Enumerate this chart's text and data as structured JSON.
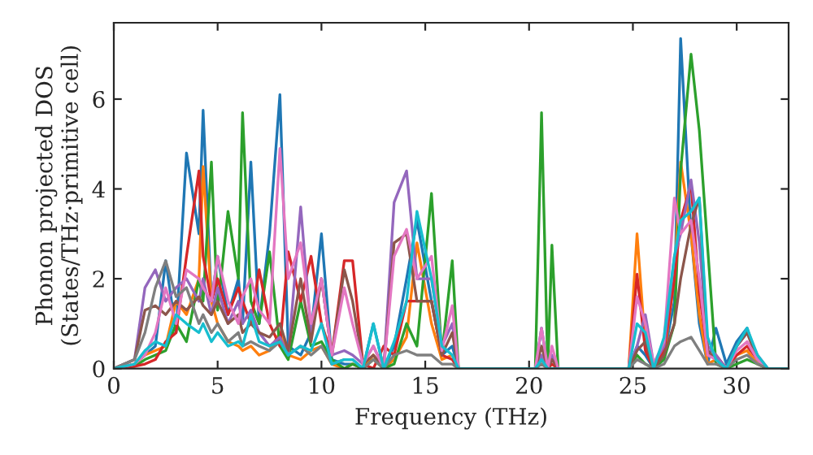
{
  "chart_data": {
    "type": "line",
    "xlabel": "Frequency (THz)",
    "ylabel": "Phonon projected DOS\n(States/THz·primitive cell)",
    "x": [
      0,
      1,
      1.5,
      2,
      2.5,
      3,
      3.5,
      4.1,
      4.3,
      4.7,
      5,
      5.5,
      6,
      6.2,
      6.6,
      7,
      7.5,
      8,
      8.4,
      9,
      9.5,
      10,
      10.5,
      11.1,
      11.5,
      12,
      12.5,
      13,
      13.5,
      14.1,
      14.6,
      15.3,
      15.8,
      16.3,
      16.6,
      20.3,
      20.6,
      20.9,
      21.1,
      21.4,
      24.8,
      25.2,
      25.6,
      26,
      26.5,
      27,
      27.3,
      27.8,
      28.2,
      28.6,
      29,
      29.5,
      30,
      30.5,
      31,
      31.5,
      32.5
    ],
    "series": [
      {
        "color": "#1f77b4",
        "values": [
          0,
          0.1,
          0.3,
          0.5,
          2.4,
          0.8,
          4.8,
          3,
          5.75,
          1.5,
          2.5,
          1.2,
          2,
          1,
          4.6,
          1,
          3,
          6.1,
          0.5,
          0.3,
          0.8,
          3,
          0.2,
          0.1,
          0.1,
          0,
          1,
          0,
          0.5,
          2,
          3.3,
          1.5,
          0.3,
          0.5,
          0,
          0,
          0.9,
          0,
          0,
          0,
          0,
          0.5,
          0.3,
          0,
          0.3,
          1.5,
          7.35,
          3,
          1,
          0.1,
          0.9,
          0.1,
          0.6,
          0.9,
          0.2,
          0,
          0
        ]
      },
      {
        "color": "#ff7f0e",
        "values": [
          0,
          0.1,
          0.3,
          0.4,
          0.5,
          1.5,
          1.2,
          2,
          4.5,
          1.5,
          1,
          0.6,
          0.5,
          0.4,
          0.5,
          0.3,
          0.4,
          0.8,
          0.3,
          0.2,
          0.4,
          0.5,
          0.1,
          0,
          0.1,
          0,
          0.3,
          0,
          0.2,
          0.7,
          2.8,
          1,
          0.2,
          0.3,
          0,
          0,
          0.2,
          0,
          0,
          0,
          0,
          3.0,
          0.5,
          0,
          0.3,
          2,
          4.6,
          3,
          1.2,
          0.1,
          0.2,
          0,
          0.3,
          0.4,
          0.1,
          0,
          0
        ]
      },
      {
        "color": "#2ca02c",
        "values": [
          0,
          0.05,
          0.2,
          0.3,
          0.4,
          1,
          0.6,
          2,
          1.5,
          4.6,
          1.3,
          3.5,
          2,
          5.7,
          1.5,
          1,
          2.6,
          0.5,
          0.2,
          1.5,
          0.5,
          0.6,
          0.2,
          0,
          0.1,
          0,
          0.2,
          0,
          0.1,
          1,
          0.5,
          3.9,
          0.3,
          2.4,
          0,
          0,
          5.7,
          0,
          2.75,
          0,
          0,
          0.3,
          0.1,
          0,
          0.2,
          1,
          4.4,
          7.0,
          5.3,
          2.7,
          0.1,
          0,
          0.1,
          0.2,
          0.1,
          0,
          0
        ]
      },
      {
        "color": "#d62728",
        "values": [
          0,
          0.05,
          0.1,
          0.2,
          0.6,
          0.8,
          2.5,
          4.4,
          2.5,
          1.5,
          2,
          1.2,
          1.8,
          1.5,
          1,
          2.2,
          1,
          0.5,
          2.6,
          1.5,
          2.5,
          1,
          0.3,
          2.4,
          2.4,
          0.1,
          0,
          0.5,
          0.3,
          1.5,
          1.5,
          1.5,
          0.3,
          0.2,
          0,
          0,
          0.2,
          0,
          0.1,
          0,
          0,
          2.1,
          0.4,
          0,
          0.4,
          2,
          3.3,
          4.1,
          1.7,
          0.3,
          0.3,
          0,
          0.3,
          0.5,
          0.2,
          0,
          0
        ]
      },
      {
        "color": "#9467bd",
        "values": [
          0,
          0.2,
          1.8,
          2.2,
          1.5,
          1.8,
          2,
          1.5,
          2,
          1.2,
          1.8,
          1,
          1.5,
          1,
          1.3,
          0.8,
          0.5,
          0.7,
          0.3,
          3.6,
          0.8,
          2,
          0.3,
          0.4,
          0.3,
          0.1,
          0.5,
          0,
          3.7,
          4.4,
          2,
          2,
          0.5,
          1,
          0,
          0,
          0.3,
          0,
          0.3,
          0,
          0,
          0.5,
          1.2,
          0.1,
          0.5,
          2.5,
          3,
          4.2,
          2.8,
          0.5,
          0.3,
          0,
          0.5,
          0.8,
          0.3,
          0,
          0
        ]
      },
      {
        "color": "#8c564b",
        "values": [
          0,
          0.2,
          1.3,
          1.4,
          1.2,
          1.5,
          1.3,
          1.6,
          1.4,
          1.2,
          1.5,
          1,
          1.2,
          0.8,
          1,
          0.8,
          0.7,
          1,
          0.4,
          2,
          0.6,
          2,
          0.3,
          2.2,
          1.5,
          0.1,
          0.3,
          0,
          2.8,
          3,
          1.5,
          1.5,
          0.3,
          0.8,
          0,
          0,
          0.5,
          0,
          0.2,
          0,
          0,
          0.4,
          0.6,
          0,
          0.3,
          1,
          2,
          3.2,
          3.8,
          0.4,
          0.2,
          0,
          0.5,
          0.8,
          0.2,
          0,
          0
        ]
      },
      {
        "color": "#e377c2",
        "values": [
          0,
          0.1,
          0.3,
          0.8,
          1.8,
          1,
          2.2,
          2,
          1.8,
          1.5,
          2.5,
          1.5,
          1,
          1.6,
          2,
          1.3,
          1,
          4.9,
          2,
          2.8,
          1,
          2,
          0.3,
          1.8,
          1,
          0.1,
          0.5,
          0,
          2.5,
          3.1,
          2,
          2.5,
          0.4,
          1.4,
          0,
          0,
          0.9,
          0,
          0.5,
          0,
          0,
          1.6,
          1,
          0.1,
          0.6,
          3.8,
          3,
          3.3,
          2,
          0.3,
          0.2,
          0,
          0.4,
          0.6,
          0.2,
          0,
          0
        ]
      },
      {
        "color": "#7f7f7f",
        "values": [
          0,
          0.2,
          0.8,
          1.8,
          2.4,
          1.6,
          1.8,
          1,
          1.2,
          0.8,
          1,
          0.6,
          0.8,
          0.5,
          0.6,
          0.5,
          0.4,
          0.6,
          0.3,
          0.5,
          0.3,
          0.5,
          0.1,
          0.2,
          0.2,
          0,
          0.2,
          0,
          0.3,
          0.4,
          0.3,
          0.3,
          0.1,
          0.1,
          0,
          0,
          0.1,
          0,
          0,
          0,
          0,
          0.2,
          0.1,
          0,
          0.1,
          0.5,
          0.6,
          0.7,
          0.4,
          0.1,
          0.1,
          0,
          0.2,
          0.3,
          0.1,
          0,
          0
        ]
      },
      {
        "color": "#17becf",
        "values": [
          0,
          0.1,
          0.4,
          0.6,
          0.5,
          1.2,
          1,
          0.8,
          1,
          0.6,
          0.8,
          0.5,
          0.6,
          0.5,
          1.2,
          0.6,
          0.5,
          0.6,
          0.3,
          0.5,
          0.4,
          1,
          0.1,
          0.2,
          0.2,
          0,
          1,
          0,
          0.6,
          1.5,
          3.5,
          2,
          0.5,
          0.3,
          0,
          0,
          0.2,
          0,
          0,
          0,
          0,
          1,
          0.8,
          0,
          0.7,
          2.5,
          3.3,
          3.5,
          3.8,
          0.7,
          0.2,
          0,
          0.5,
          0.9,
          0.3,
          0,
          0
        ]
      }
    ],
    "xlim": [
      0,
      32.5
    ],
    "ylim": [
      0,
      7.7
    ],
    "xticks": [
      0,
      5,
      10,
      15,
      20,
      25,
      30
    ],
    "yticks": [
      0,
      2,
      4,
      6
    ]
  }
}
